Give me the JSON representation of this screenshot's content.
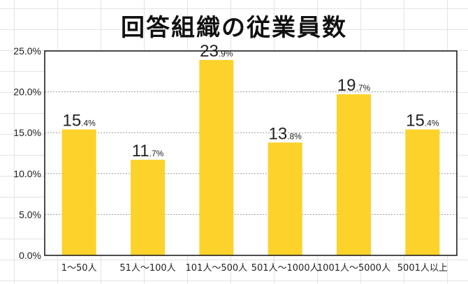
{
  "chart_data": {
    "type": "bar",
    "title": "回答組織の従業員数",
    "categories": [
      "1〜50人",
      "51人〜100人",
      "101人〜500人",
      "501人〜1000人",
      "1001人〜5000人",
      "5001人以上"
    ],
    "values": [
      15.4,
      11.7,
      23.9,
      13.8,
      19.7,
      15.4
    ],
    "ylim": [
      0,
      25
    ],
    "yticks": [
      "0.0%",
      "5.0%",
      "10.0%",
      "15.0%",
      "20.0%",
      "25.0%"
    ],
    "xlabel": "",
    "ylabel": "",
    "grid": true,
    "bar_color": "#FDD22B"
  }
}
